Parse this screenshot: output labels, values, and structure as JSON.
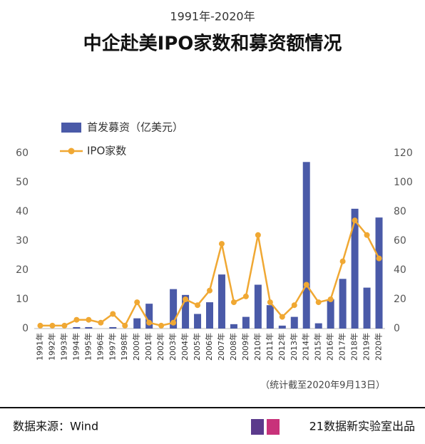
{
  "chart_data": {
    "type": "bar",
    "subtitle": "1991年-2020年",
    "title": "中企赴美IPO家数和募资额情况",
    "categories": [
      "1991年",
      "1992年",
      "1993年",
      "1994年",
      "1995年",
      "1996年",
      "1997年",
      "1998年",
      "2000年",
      "2001年",
      "2002年",
      "2003年",
      "2004年",
      "2005年",
      "2006年",
      "2007年",
      "2008年",
      "2009年",
      "2010年",
      "2011年",
      "2012年",
      "2013年",
      "2014年",
      "2015年",
      "2016年",
      "2017年",
      "2018年",
      "2019年",
      "2020年"
    ],
    "series": [
      {
        "name": "首发募资（亿美元）",
        "type": "bar",
        "color": "#4a5aa8",
        "values": [
          0,
          0,
          0,
          0.5,
          0.5,
          0,
          0.5,
          0,
          3.5,
          8.5,
          0,
          13.5,
          11.5,
          5,
          9,
          18.5,
          1.5,
          4,
          15,
          8,
          1,
          4,
          57,
          1.8,
          10,
          17,
          41,
          14,
          38
        ]
      },
      {
        "name": "IPO家数",
        "type": "line",
        "axis": "y2",
        "color": "#f0a833",
        "values": [
          2,
          2,
          2,
          6,
          6,
          4,
          10,
          2,
          18,
          4,
          2,
          4,
          20,
          16,
          26,
          58,
          18,
          22,
          64,
          18,
          8,
          16,
          30,
          18,
          20,
          46,
          74,
          64,
          48
        ]
      }
    ],
    "ylim": [
      0,
      60
    ],
    "yticks": [
      0,
      10,
      20,
      30,
      40,
      50,
      60
    ],
    "y2lim": [
      0,
      120
    ],
    "y2ticks": [
      0,
      20,
      40,
      60,
      80,
      100,
      120
    ],
    "note": "（统计截至2020年9月13日）",
    "source": "数据来源：Wind",
    "credit": "21数据新实验室出品"
  }
}
